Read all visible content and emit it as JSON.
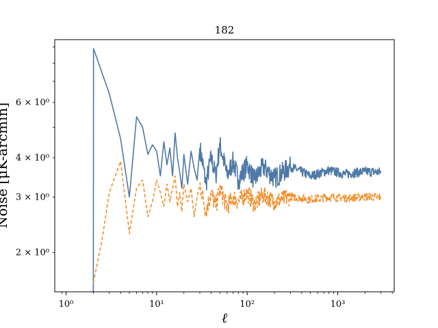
{
  "chart_data": {
    "type": "line",
    "title": "182",
    "xlabel": "ℓ",
    "ylabel": "Noise [μK-arcmin]",
    "xscale": "log",
    "yscale": "log",
    "xlim": [
      0.75,
      4200
    ],
    "ylim": [
      1.5,
      9.5
    ],
    "grid": false,
    "legend": "none",
    "x_ticks": [
      {
        "value": 1,
        "label": "10⁰"
      },
      {
        "value": 10,
        "label": "10¹"
      },
      {
        "value": 100,
        "label": "10²"
      },
      {
        "value": 1000,
        "label": "10³"
      }
    ],
    "y_ticks": [
      {
        "value": 2,
        "label": "2 × 10⁰"
      },
      {
        "value": 3,
        "label": "3 × 10⁰"
      },
      {
        "value": 4,
        "label": "4 × 10⁰"
      },
      {
        "value": 6,
        "label": "6 × 10⁰"
      }
    ],
    "series": [
      {
        "color": "#4e79a7",
        "dash": "solid",
        "x": [
          2,
          2.01,
          3,
          4,
          5,
          6,
          7,
          8,
          9,
          10,
          11,
          12,
          13,
          14,
          15,
          16,
          17,
          18,
          19,
          20,
          22,
          24,
          26,
          28,
          30,
          35,
          40,
          45,
          50,
          60,
          70,
          80,
          100,
          120,
          150,
          200,
          300,
          500,
          800,
          1200,
          2000,
          3000
        ],
        "values": [
          1.5,
          8.9,
          6.4,
          4.6,
          3.0,
          5.4,
          5.0,
          4.1,
          4.4,
          4.2,
          3.5,
          4.5,
          3.8,
          4.3,
          3.5,
          4.8,
          4.0,
          3.6,
          3.2,
          4.1,
          3.3,
          4.2,
          3.7,
          3.4,
          4.3,
          3.3,
          4.0,
          3.5,
          4.4,
          3.5,
          3.9,
          3.4,
          3.8,
          3.4,
          3.75,
          3.45,
          3.75,
          3.5,
          3.65,
          3.55,
          3.62,
          3.6
        ],
        "noise": 0.035
      },
      {
        "color": "#f28e2b",
        "dash": "dashed",
        "x": [
          2,
          2.5,
          3,
          4,
          5,
          6,
          7,
          8,
          9,
          10,
          11,
          12,
          13,
          14,
          15,
          16,
          17,
          18,
          19,
          20,
          22,
          24,
          26,
          28,
          30,
          35,
          40,
          45,
          50,
          60,
          70,
          80,
          100,
          120,
          150,
          200,
          300,
          500,
          800,
          1200,
          2000,
          3000
        ],
        "values": [
          1.6,
          2.2,
          3.1,
          3.9,
          2.3,
          3.2,
          3.4,
          2.6,
          2.9,
          3.4,
          3.1,
          2.8,
          3.3,
          2.9,
          3.2,
          3.5,
          2.8,
          3.1,
          2.7,
          3.3,
          2.9,
          3.2,
          2.6,
          3.0,
          3.3,
          2.7,
          3.1,
          2.8,
          3.2,
          2.8,
          3.0,
          2.9,
          3.1,
          2.85,
          3.05,
          2.9,
          3.02,
          2.95,
          3.0,
          2.98,
          3.01,
          3.0
        ],
        "noise": 0.03
      }
    ]
  }
}
